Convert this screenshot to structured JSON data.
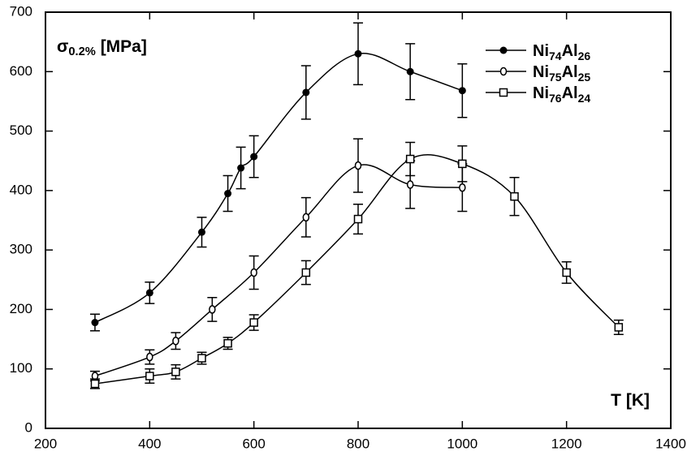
{
  "chart_data": {
    "type": "scatter",
    "annotations": [
      "σ0.2% [MPa]",
      "T [K]"
    ],
    "xlim": [
      200,
      1400
    ],
    "xticks": [
      200,
      400,
      600,
      800,
      1000,
      1200,
      1400
    ],
    "ylim": [
      0,
      700
    ],
    "yticks": [
      0,
      100,
      200,
      300,
      400,
      500,
      600,
      700
    ],
    "legend": "upper right",
    "color": "#000000",
    "series": [
      {
        "name": "Ni74Al26",
        "marker": "filled-circle",
        "x": [
          295,
          400,
          500,
          550,
          575,
          600,
          700,
          800,
          900,
          1000
        ],
        "values": [
          178,
          228,
          330,
          395,
          438,
          457,
          565,
          630,
          600,
          568
        ],
        "errors": [
          14,
          18,
          25,
          30,
          35,
          35,
          45,
          52,
          47,
          45
        ]
      },
      {
        "name": "Ni75Al25",
        "marker": "open-circle",
        "x": [
          295,
          400,
          450,
          520,
          600,
          700,
          800,
          900,
          1000
        ],
        "values": [
          88,
          120,
          147,
          200,
          262,
          355,
          442,
          410,
          405
        ],
        "errors": [
          8,
          12,
          14,
          20,
          28,
          33,
          45,
          40,
          40
        ]
      },
      {
        "name": "Ni76Al24",
        "marker": "open-square",
        "x": [
          295,
          400,
          450,
          500,
          550,
          600,
          700,
          800,
          900,
          1000,
          1100,
          1200,
          1300
        ],
        "values": [
          75,
          88,
          95,
          118,
          143,
          178,
          262,
          352,
          453,
          445,
          390,
          262,
          170
        ],
        "errors": [
          8,
          12,
          12,
          10,
          10,
          13,
          20,
          25,
          28,
          30,
          32,
          18,
          12
        ]
      }
    ]
  }
}
